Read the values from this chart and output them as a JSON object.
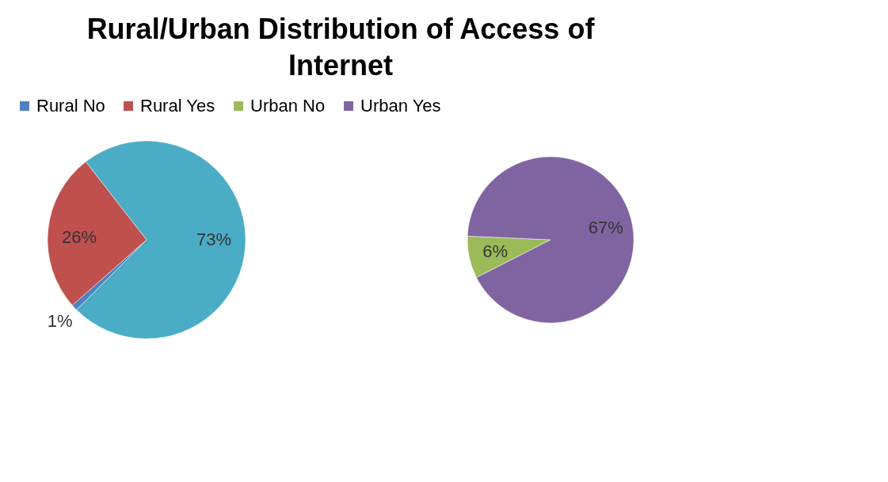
{
  "chart_data": [
    {
      "type": "pie",
      "title": "Rural/Urban Distribution of Access of Internet",
      "legend": "top",
      "categories": [
        "Rural No",
        "Rural Yes",
        null
      ],
      "values": [
        1,
        26,
        73
      ],
      "colors": [
        "#4f81bd",
        "#c0504d",
        "#4bacc6"
      ],
      "value_labels": [
        "1%",
        "26%",
        "73%"
      ]
    },
    {
      "type": "pie",
      "legend": "top",
      "categories": [
        "Urban No",
        "Urban Yes"
      ],
      "values": [
        6,
        67
      ],
      "colors": [
        "#9bbb59",
        "#8064a2"
      ],
      "value_labels": [
        "6%",
        "67%"
      ]
    }
  ]
}
